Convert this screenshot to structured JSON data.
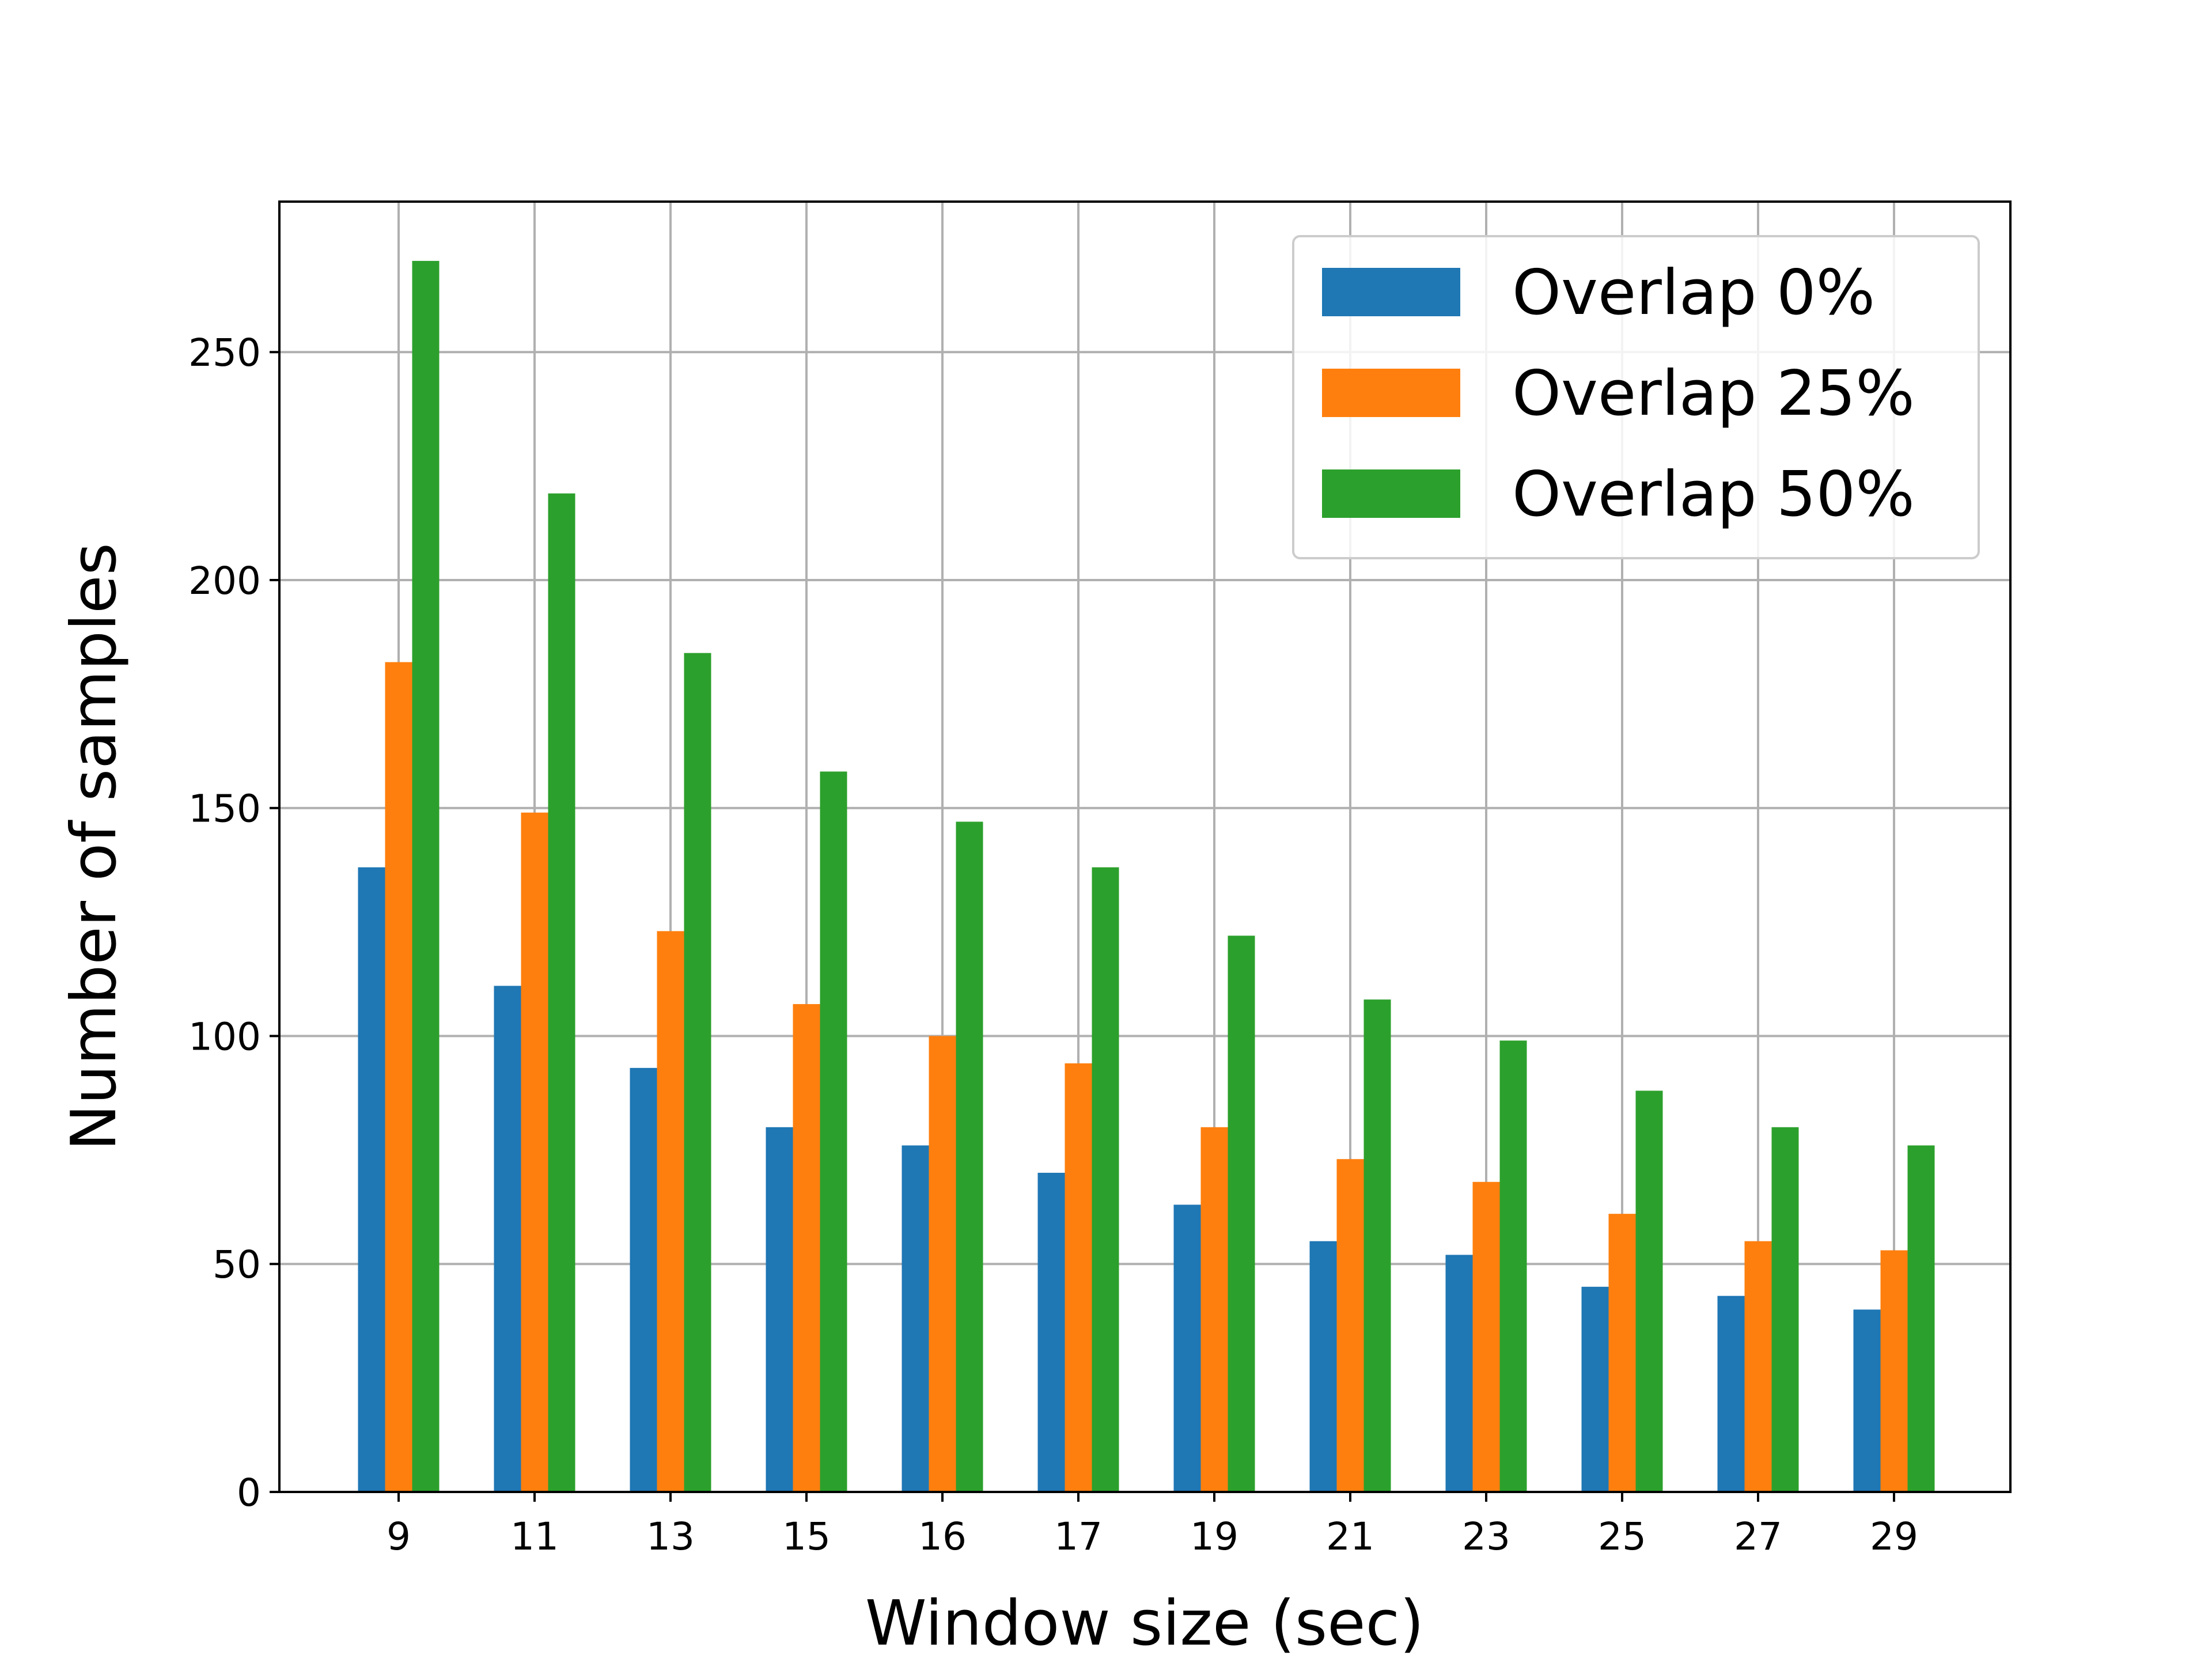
{
  "chart_data": {
    "type": "bar",
    "title": "",
    "xlabel": "Window size (sec)",
    "ylabel": "Number of samples",
    "categories": [
      "9",
      "11",
      "13",
      "15",
      "16",
      "17",
      "19",
      "21",
      "23",
      "25",
      "27",
      "29"
    ],
    "series": [
      {
        "name": "Overlap 0%",
        "color": "#1f77b4",
        "values": [
          137,
          111,
          93,
          80,
          76,
          70,
          63,
          55,
          52,
          45,
          43,
          40
        ]
      },
      {
        "name": "Overlap 25%",
        "color": "#ff7f0e",
        "values": [
          182,
          149,
          123,
          107,
          100,
          94,
          80,
          73,
          68,
          61,
          55,
          53
        ]
      },
      {
        "name": "Overlap 50%",
        "color": "#2ca02c",
        "values": [
          270,
          219,
          184,
          158,
          147,
          137,
          122,
          108,
          99,
          88,
          80,
          76
        ]
      }
    ],
    "ylim": [
      0,
      283
    ],
    "yticks": [
      0,
      50,
      100,
      150,
      200,
      250
    ],
    "grid": true,
    "legend_position": "top-right"
  }
}
